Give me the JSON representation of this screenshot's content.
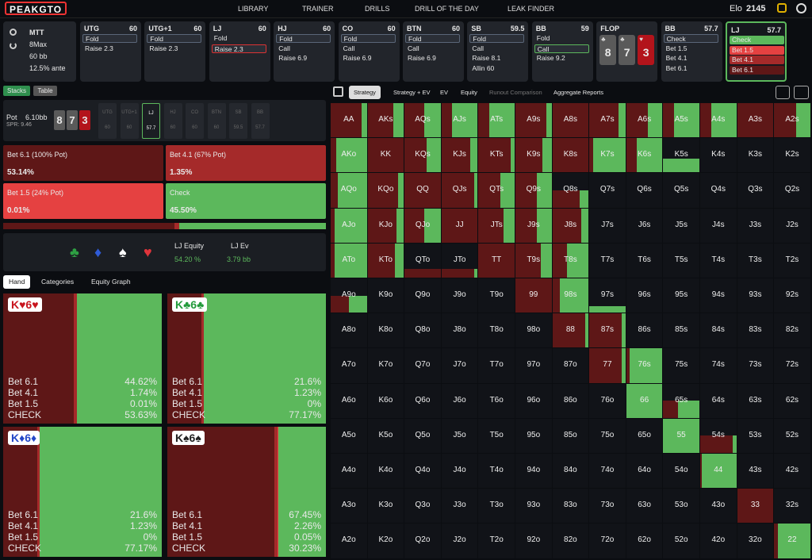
{
  "header": {
    "logo": "PEAKGTO",
    "nav": [
      "LIBRARY",
      "TRAINER",
      "DRILLS",
      "DRILL OF THE DAY",
      "LEAK FINDER"
    ],
    "elo_label": "Elo",
    "elo": "2145"
  },
  "settings": [
    "MTT",
    "8Max",
    "60 bb",
    "12.5% ante"
  ],
  "positions": [
    {
      "name": "UTG",
      "stack": "60",
      "actions": [
        {
          "label": "Fold",
          "style": "boxed"
        },
        {
          "label": "Raise 2.3",
          "style": "plain"
        }
      ]
    },
    {
      "name": "UTG+1",
      "stack": "60",
      "actions": [
        {
          "label": "Fold",
          "style": "boxed"
        },
        {
          "label": "Raise 2.3",
          "style": "plain"
        }
      ]
    },
    {
      "name": "LJ",
      "stack": "60",
      "actions": [
        {
          "label": "Fold",
          "style": "plain"
        },
        {
          "label": "Raise 2.3",
          "style": "red-outline"
        }
      ]
    },
    {
      "name": "HJ",
      "stack": "60",
      "actions": [
        {
          "label": "Fold",
          "style": "boxed"
        },
        {
          "label": "Call",
          "style": "plain"
        },
        {
          "label": "Raise 6.9",
          "style": "plain"
        }
      ]
    },
    {
      "name": "CO",
      "stack": "60",
      "actions": [
        {
          "label": "Fold",
          "style": "boxed"
        },
        {
          "label": "Call",
          "style": "plain"
        },
        {
          "label": "Raise 6.9",
          "style": "plain"
        }
      ]
    },
    {
      "name": "BTN",
      "stack": "60",
      "actions": [
        {
          "label": "Fold",
          "style": "boxed"
        },
        {
          "label": "Call",
          "style": "plain"
        },
        {
          "label": "Raise 6.9",
          "style": "plain"
        }
      ]
    },
    {
      "name": "SB",
      "stack": "59.5",
      "actions": [
        {
          "label": "Fold",
          "style": "boxed"
        },
        {
          "label": "Call",
          "style": "plain"
        },
        {
          "label": "Raise 8.1",
          "style": "plain"
        },
        {
          "label": "Allin 60",
          "style": "plain"
        }
      ]
    },
    {
      "name": "BB",
      "stack": "59",
      "actions": [
        {
          "label": "Fold",
          "style": "plain"
        },
        {
          "label": "Call",
          "style": "green-outline"
        },
        {
          "label": "Raise 9.2",
          "style": "plain"
        }
      ]
    },
    {
      "name": "FLOP",
      "cards": [
        {
          "rank": "8",
          "suit": "♣",
          "color": "#5a5a5a"
        },
        {
          "rank": "7",
          "suit": "♣",
          "color": "#5a5a5a"
        },
        {
          "rank": "3",
          "suit": "♥",
          "color": "#b3141b"
        }
      ]
    },
    {
      "name": "BB",
      "stack": "57.7",
      "actions": [
        {
          "label": "Check",
          "style": "boxed"
        },
        {
          "label": "Bet 1.5",
          "style": "plain"
        },
        {
          "label": "Bet 4.1",
          "style": "plain"
        },
        {
          "label": "Bet 6.1",
          "style": "plain"
        }
      ]
    },
    {
      "name": "LJ",
      "stack": "57.7",
      "current": true,
      "actions": [
        {
          "label": "Check",
          "style": "green"
        },
        {
          "label": "Bet 1.5",
          "style": "red"
        },
        {
          "label": "Bet 4.1",
          "style": "mid-red"
        },
        {
          "label": "Bet 6.1",
          "style": "dark-red"
        }
      ]
    }
  ],
  "left": {
    "tabs": [
      "Stacks",
      "Table"
    ],
    "pot_label": "Pot",
    "pot": "6.10bb",
    "spr": "SPR: 9.46",
    "board": [
      {
        "rank": "8",
        "color": "#5a5a5a"
      },
      {
        "rank": "7",
        "color": "#5a5a5a"
      },
      {
        "rank": "3",
        "color": "#b3141b"
      }
    ],
    "seats": [
      {
        "name": "UTG",
        "stack": "60"
      },
      {
        "name": "UTG+1",
        "stack": "60"
      },
      {
        "name": "LJ",
        "stack": "57.7"
      },
      {
        "name": "HJ",
        "stack": "60"
      },
      {
        "name": "CO",
        "stack": "60"
      },
      {
        "name": "BTN",
        "stack": "60"
      },
      {
        "name": "SB",
        "stack": "59.5"
      },
      {
        "name": "BB",
        "stack": "57.7"
      }
    ],
    "actions": [
      {
        "name": "Bet 6.1 (100% Pot)",
        "freq": {
          "value": 53.14,
          "label": "53.14%"
        },
        "color": "#5e1717"
      },
      {
        "name": "Bet 4.1 (67% Pot)",
        "freq": {
          "value": 1.35,
          "label": "1.35%"
        },
        "color": "#a52a2a"
      },
      {
        "name": "Bet 1.5 (24% Pot)",
        "freq": {
          "value": 0.01,
          "label": "0.01%"
        },
        "color": "#e54141"
      },
      {
        "name": "Check",
        "freq": {
          "value": 45.5,
          "label": "45.50%"
        },
        "color": "#5cb85c"
      }
    ],
    "suits": [
      {
        "symbol": "♣",
        "color": "#2ea043"
      },
      {
        "symbol": "♦",
        "color": "#2f5bd6"
      },
      {
        "symbol": "♠",
        "color": "#ffffff"
      },
      {
        "symbol": "♥",
        "color": "#e0343b"
      }
    ],
    "equity_label": "LJ Equity",
    "equity": "54.20 %",
    "ev_label": "LJ Ev",
    "ev": "3.79 bb",
    "hand_tabs": [
      "Hand",
      "Categories",
      "Equity Graph"
    ],
    "combos": [
      {
        "hand": "K♥6♥",
        "color": "#c8141e",
        "rows": [
          {
            "name": "Bet 6.1",
            "freq": {
              "value": 44.62,
              "label": "44.62%"
            }
          },
          {
            "name": "Bet 4.1",
            "freq": {
              "value": 1.74,
              "label": "1.74%"
            }
          },
          {
            "name": "Bet 1.5",
            "freq": {
              "value": 0.01,
              "label": "0.01%"
            }
          },
          {
            "name": "CHECK",
            "freq": {
              "value": 53.63,
              "label": "53.63%"
            }
          }
        ]
      },
      {
        "hand": "K♣6♣",
        "color": "#239a3b",
        "rows": [
          {
            "name": "Bet 6.1",
            "freq": {
              "value": 21.6,
              "label": "21.6%"
            }
          },
          {
            "name": "Bet 4.1",
            "freq": {
              "value": 1.23,
              "label": "1.23%"
            }
          },
          {
            "name": "Bet 1.5",
            "freq": {
              "value": 0,
              "label": "0%"
            }
          },
          {
            "name": "CHECK",
            "freq": {
              "value": 77.17,
              "label": "77.17%"
            }
          }
        ]
      },
      {
        "hand": "K♦6♦",
        "color": "#2348c8",
        "rows": [
          {
            "name": "Bet 6.1",
            "freq": {
              "value": 21.6,
              "label": "21.6%"
            }
          },
          {
            "name": "Bet 4.1",
            "freq": {
              "value": 1.23,
              "label": "1.23%"
            }
          },
          {
            "name": "Bet 1.5",
            "freq": {
              "value": 0,
              "label": "0%"
            }
          },
          {
            "name": "CHECK",
            "freq": {
              "value": 77.17,
              "label": "77.17%"
            }
          }
        ]
      },
      {
        "hand": "K♠6♠",
        "color": "#222222",
        "rows": [
          {
            "name": "Bet 6.1",
            "freq": {
              "value": 67.45,
              "label": "67.45%"
            }
          },
          {
            "name": "Bet 4.1",
            "freq": {
              "value": 2.26,
              "label": "2.26%"
            }
          },
          {
            "name": "Bet 1.5",
            "freq": {
              "value": 0.05,
              "label": "0.05%"
            }
          },
          {
            "name": "CHECK",
            "freq": {
              "value": 30.23,
              "label": "30.23%"
            }
          }
        ]
      }
    ]
  },
  "toolbar": [
    "Strategy",
    "Strategy + EV",
    "EV",
    "Equity",
    "Runout Comparison",
    "Aggregate Reports"
  ],
  "grid": {
    "labels": [
      [
        "AA",
        "AKs",
        "AQs",
        "AJs",
        "ATs",
        "A9s",
        "A8s",
        "A7s",
        "A6s",
        "A5s",
        "A4s",
        "A3s",
        "A2s"
      ],
      [
        "AKo",
        "KK",
        "KQs",
        "KJs",
        "KTs",
        "K9s",
        "K8s",
        "K7s",
        "K6s",
        "K5s",
        "K4s",
        "K3s",
        "K2s"
      ],
      [
        "AQo",
        "KQo",
        "QQ",
        "QJs",
        "QTs",
        "Q9s",
        "Q8s",
        "Q7s",
        "Q6s",
        "Q5s",
        "Q4s",
        "Q3s",
        "Q2s"
      ],
      [
        "AJo",
        "KJo",
        "QJo",
        "JJ",
        "JTs",
        "J9s",
        "J8s",
        "J7s",
        "J6s",
        "J5s",
        "J4s",
        "J3s",
        "J2s"
      ],
      [
        "ATo",
        "KTo",
        "QTo",
        "JTo",
        "TT",
        "T9s",
        "T8s",
        "T7s",
        "T6s",
        "T5s",
        "T4s",
        "T3s",
        "T2s"
      ],
      [
        "A9o",
        "K9o",
        "Q9o",
        "J9o",
        "T9o",
        "99",
        "98s",
        "97s",
        "96s",
        "95s",
        "94s",
        "93s",
        "92s"
      ],
      [
        "A8o",
        "K8o",
        "Q8o",
        "J8o",
        "T8o",
        "98o",
        "88",
        "87s",
        "86s",
        "85s",
        "84s",
        "83s",
        "82s"
      ],
      [
        "A7o",
        "K7o",
        "Q7o",
        "J7o",
        "T7o",
        "97o",
        "87o",
        "77",
        "76s",
        "75s",
        "74s",
        "73s",
        "72s"
      ],
      [
        "A6o",
        "K6o",
        "Q6o",
        "J6o",
        "T6o",
        "96o",
        "86o",
        "76o",
        "66",
        "65s",
        "64s",
        "63s",
        "62s"
      ],
      [
        "A5o",
        "K5o",
        "Q5o",
        "J5o",
        "T5o",
        "95o",
        "85o",
        "75o",
        "65o",
        "55",
        "54s",
        "53s",
        "52s"
      ],
      [
        "A4o",
        "K4o",
        "Q4o",
        "J4o",
        "T4o",
        "94o",
        "84o",
        "74o",
        "64o",
        "54o",
        "44",
        "43s",
        "42s"
      ],
      [
        "A3o",
        "K3o",
        "Q3o",
        "J3o",
        "T3o",
        "93o",
        "83o",
        "73o",
        "63o",
        "53o",
        "43o",
        "33",
        "32s"
      ],
      [
        "A2o",
        "K2o",
        "Q2o",
        "J2o",
        "T2o",
        "92o",
        "82o",
        "72o",
        "62o",
        "52o",
        "42o",
        "32o",
        "22"
      ]
    ],
    "weight": [
      [
        100,
        100,
        100,
        100,
        100,
        100,
        100,
        100,
        100,
        100,
        100,
        100,
        100
      ],
      [
        100,
        100,
        100,
        100,
        100,
        100,
        100,
        100,
        100,
        40,
        0,
        0,
        0
      ],
      [
        100,
        100,
        100,
        100,
        100,
        100,
        50,
        0,
        0,
        0,
        0,
        0,
        0
      ],
      [
        100,
        100,
        100,
        100,
        100,
        100,
        100,
        0,
        0,
        0,
        0,
        0,
        0
      ],
      [
        100,
        100,
        25,
        25,
        100,
        100,
        100,
        0,
        0,
        0,
        0,
        0,
        0
      ],
      [
        50,
        0,
        0,
        0,
        0,
        100,
        100,
        20,
        0,
        0,
        0,
        0,
        0
      ],
      [
        0,
        0,
        0,
        0,
        0,
        0,
        100,
        100,
        0,
        0,
        0,
        0,
        0
      ],
      [
        0,
        0,
        0,
        0,
        0,
        0,
        0,
        100,
        100,
        0,
        0,
        0,
        0
      ],
      [
        0,
        0,
        0,
        0,
        0,
        0,
        0,
        0,
        100,
        50,
        0,
        0,
        0
      ],
      [
        0,
        0,
        0,
        0,
        0,
        0,
        0,
        0,
        0,
        100,
        50,
        0,
        0
      ],
      [
        0,
        0,
        0,
        0,
        0,
        0,
        0,
        0,
        0,
        0,
        100,
        0,
        0
      ],
      [
        0,
        0,
        0,
        0,
        0,
        0,
        0,
        0,
        0,
        0,
        0,
        100,
        0
      ],
      [
        0,
        0,
        0,
        0,
        0,
        0,
        0,
        0,
        0,
        0,
        0,
        0,
        100
      ]
    ],
    "check": [
      [
        15,
        30,
        45,
        70,
        70,
        15,
        0,
        20,
        40,
        70,
        70,
        0,
        40
      ],
      [
        85,
        0,
        40,
        20,
        10,
        25,
        0,
        90,
        70,
        100,
        0,
        0,
        0
      ],
      [
        80,
        15,
        0,
        10,
        40,
        40,
        25,
        0,
        0,
        0,
        0,
        0,
        0
      ],
      [
        90,
        20,
        45,
        0,
        30,
        40,
        20,
        0,
        0,
        0,
        0,
        0,
        0
      ],
      [
        90,
        25,
        0,
        10,
        0,
        30,
        60,
        0,
        0,
        0,
        0,
        0,
        0
      ],
      [
        50,
        0,
        0,
        0,
        0,
        0,
        80,
        100,
        0,
        0,
        0,
        0,
        0
      ],
      [
        0,
        0,
        0,
        0,
        0,
        0,
        10,
        10,
        0,
        0,
        0,
        0,
        0
      ],
      [
        0,
        0,
        0,
        0,
        0,
        0,
        0,
        10,
        90,
        0,
        0,
        0,
        0
      ],
      [
        0,
        0,
        0,
        0,
        0,
        0,
        0,
        0,
        100,
        60,
        0,
        0,
        0
      ],
      [
        0,
        0,
        0,
        0,
        0,
        0,
        0,
        0,
        0,
        100,
        10,
        0,
        0
      ],
      [
        0,
        0,
        0,
        0,
        0,
        0,
        0,
        0,
        0,
        0,
        95,
        0,
        0
      ],
      [
        0,
        0,
        0,
        0,
        0,
        0,
        0,
        0,
        0,
        0,
        0,
        0,
        0
      ],
      [
        0,
        0,
        0,
        0,
        0,
        0,
        0,
        0,
        0,
        0,
        0,
        0,
        90
      ]
    ]
  }
}
